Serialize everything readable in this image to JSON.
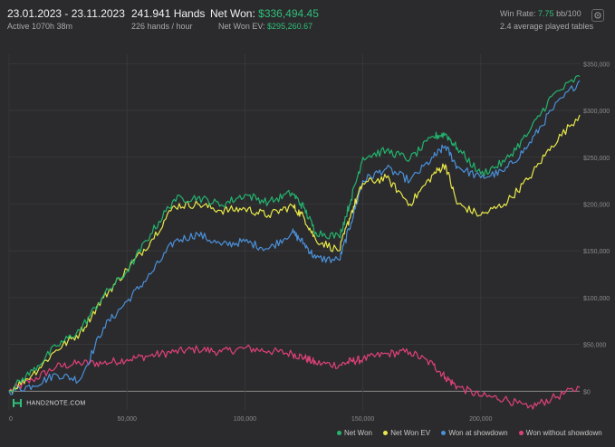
{
  "header": {
    "date_range": "23.01.2023 - 23.11.2023",
    "active": "Active 1070h 38m",
    "hands": "241.941 Hands",
    "hands_per_hour": "226 hands / hour",
    "net_won_label": "Net Won:",
    "net_won_value": "$336,494.45",
    "net_won_ev_label": "Net Won  EV:",
    "net_won_ev_value": "$295,260.67",
    "win_rate_label": "Win Rate:",
    "win_rate_value": "7.75",
    "win_rate_unit": "bb/100",
    "tables": "2.4 average played tables"
  },
  "logo_text": "HAND2NOTE.COM",
  "icons": {
    "settings": "settings-icon"
  },
  "colors": {
    "background": "#2b2b2d",
    "net_won": "#23b46e",
    "net_won_ev": "#e8e84a",
    "won_at_showdown": "#4a90d9",
    "won_without_showdown": "#e0407a"
  },
  "chart_data": {
    "type": "line",
    "xlim": [
      0,
      241941
    ],
    "ylim": [
      -20000,
      360000
    ],
    "x_ticks": [
      0,
      50000,
      100000,
      150000,
      200000
    ],
    "x_tick_labels": [
      "0",
      "50,000",
      "100,000",
      "150,000",
      "200,000"
    ],
    "y_ticks": [
      0,
      50000,
      100000,
      150000,
      200000,
      250000,
      300000,
      350000
    ],
    "y_tick_labels": [
      "$0",
      "$50,000",
      "$100,000",
      "$150,000",
      "$200,000",
      "$250,000",
      "$300,000",
      "$350,000"
    ],
    "grid": true,
    "legend_position": "bottom-right",
    "series": [
      {
        "name": "Net Won",
        "color": "#23b46e",
        "x": [
          0,
          10000,
          20000,
          30000,
          40000,
          50000,
          60000,
          70000,
          80000,
          90000,
          100000,
          110000,
          120000,
          125000,
          130000,
          140000,
          145000,
          150000,
          160000,
          170000,
          180000,
          185000,
          190000,
          200000,
          210000,
          220000,
          230000,
          241941
        ],
        "y": [
          0,
          22000,
          48000,
          65000,
          102000,
          128000,
          168000,
          205000,
          207000,
          199000,
          210000,
          202000,
          212000,
          196000,
          170000,
          165000,
          205000,
          250000,
          257000,
          248000,
          272000,
          275000,
          260000,
          232000,
          245000,
          275000,
          315000,
          336494
        ]
      },
      {
        "name": "Net Won  EV",
        "color": "#e8e84a",
        "x": [
          0,
          10000,
          20000,
          30000,
          40000,
          50000,
          60000,
          70000,
          80000,
          90000,
          100000,
          110000,
          120000,
          125000,
          130000,
          140000,
          145000,
          150000,
          160000,
          170000,
          180000,
          185000,
          190000,
          200000,
          210000,
          220000,
          230000,
          241941
        ],
        "y": [
          0,
          18000,
          44000,
          62000,
          100000,
          130000,
          160000,
          198000,
          200000,
          193000,
          195000,
          188000,
          198000,
          186000,
          162000,
          150000,
          190000,
          222000,
          228000,
          200000,
          232000,
          242000,
          200000,
          188000,
          200000,
          226000,
          262000,
          295260
        ]
      },
      {
        "name": "Won at showdown",
        "color": "#4a90d9",
        "x": [
          0,
          10000,
          20000,
          30000,
          40000,
          50000,
          60000,
          70000,
          80000,
          90000,
          100000,
          110000,
          120000,
          125000,
          130000,
          140000,
          145000,
          150000,
          160000,
          170000,
          180000,
          185000,
          190000,
          200000,
          210000,
          220000,
          230000,
          241941
        ],
        "y": [
          0,
          6000,
          18000,
          12000,
          68000,
          96000,
          125000,
          160000,
          168000,
          156000,
          160000,
          152000,
          170000,
          158000,
          142000,
          140000,
          180000,
          225000,
          238000,
          225000,
          250000,
          262000,
          240000,
          228000,
          235000,
          262000,
          300000,
          332000
        ]
      },
      {
        "name": "Won without showdown",
        "color": "#e0407a",
        "x": [
          0,
          10000,
          20000,
          30000,
          40000,
          50000,
          60000,
          70000,
          80000,
          90000,
          100000,
          110000,
          120000,
          125000,
          130000,
          140000,
          145000,
          150000,
          160000,
          170000,
          180000,
          185000,
          190000,
          200000,
          210000,
          220000,
          230000,
          241941
        ],
        "y": [
          0,
          12000,
          26000,
          30000,
          30000,
          34000,
          38000,
          42000,
          45000,
          42000,
          46000,
          43000,
          40000,
          36000,
          30000,
          28000,
          32000,
          34000,
          40000,
          42000,
          28000,
          15000,
          5000,
          -5000,
          -8000,
          -18000,
          -8000,
          4000
        ]
      }
    ]
  }
}
